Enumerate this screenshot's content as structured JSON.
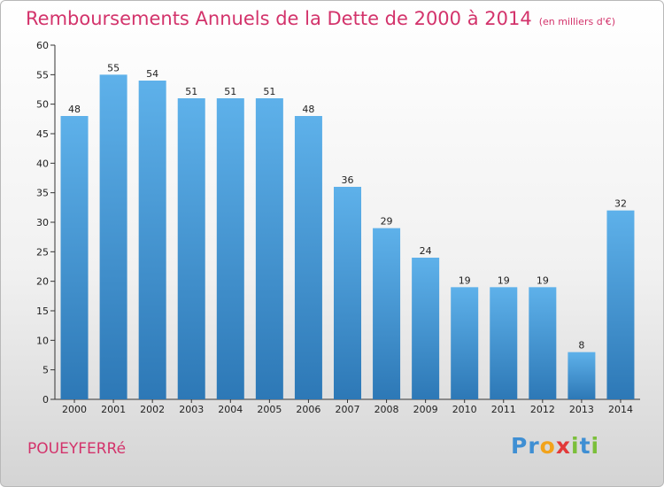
{
  "chart_data": {
    "type": "bar",
    "title": "Remboursements Annuels de la Dette de 2000 à 2014",
    "subtitle": "(en milliers d'€)",
    "categories": [
      "2000",
      "2001",
      "2002",
      "2003",
      "2004",
      "2005",
      "2006",
      "2007",
      "2008",
      "2009",
      "2010",
      "2011",
      "2012",
      "2013",
      "2014"
    ],
    "values": [
      48,
      55,
      54,
      51,
      51,
      51,
      48,
      36,
      29,
      24,
      19,
      19,
      19,
      8,
      32
    ],
    "xlabel": "",
    "ylabel": "",
    "ylim": [
      0,
      60
    ],
    "yticks": [
      0,
      5,
      10,
      15,
      20,
      25,
      30,
      35,
      40,
      45,
      50,
      55,
      60
    ],
    "grid": false,
    "legend": "none"
  },
  "footer": {
    "commune": "POUEYFERRé",
    "brand": [
      "P",
      "r",
      "o",
      "x",
      "i",
      "t",
      "i"
    ]
  },
  "colors": {
    "title": "#d3336b",
    "bar_light": "#5eb1ea",
    "bar_dark": "#2d78b6",
    "axis": "#333333",
    "brand": [
      "#3f8fd3",
      "#3f8fd3",
      "#f2a31b",
      "#e23a3a",
      "#7bbf3a",
      "#3f8fd3",
      "#7bbf3a"
    ]
  }
}
